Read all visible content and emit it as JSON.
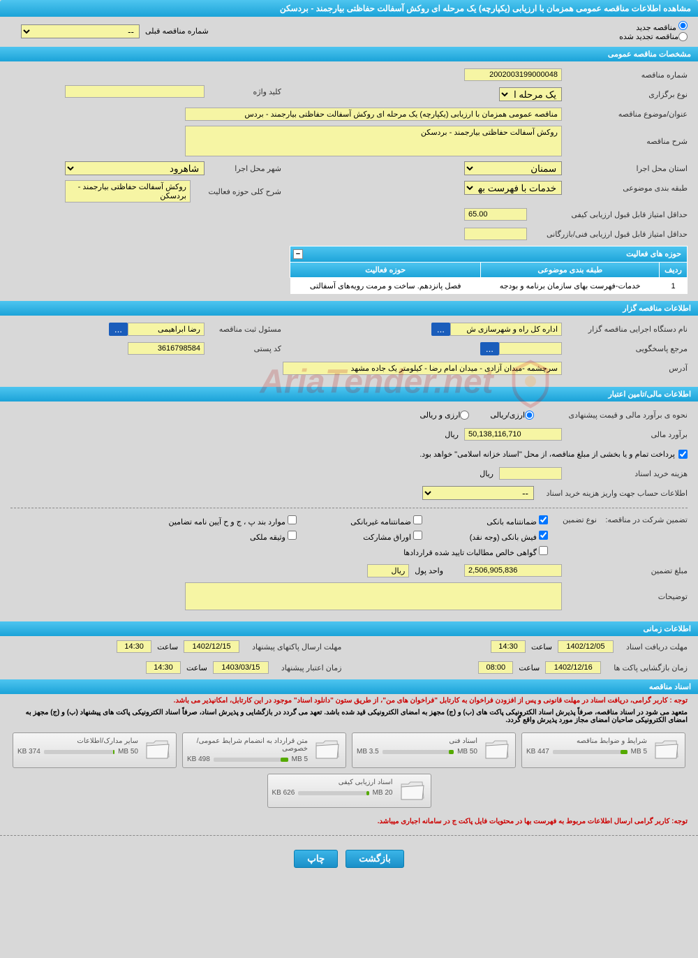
{
  "page_title": "مشاهده اطلاعات مناقصه عمومی همزمان با ارزیابی (یکپارچه) یک مرحله ای روکش آسفالت حفاظتی بیارجمند - بردسکن",
  "tender_status": {
    "new_label": "مناقصه جدید",
    "renewed_label": "مناقصه تجدید شده",
    "prev_label": "شماره مناقصه قبلی",
    "prev_value": "--"
  },
  "sections": {
    "general": "مشخصات مناقصه عمومی",
    "organizer": "اطلاعات مناقصه گزار",
    "financial": "اطلاعات مالی/تامین اعتبار",
    "timing": "اطلاعات زمانی",
    "documents": "اسناد مناقصه"
  },
  "general": {
    "tender_no_label": "شماره مناقصه",
    "tender_no": "2002003199000048",
    "holding_type_label": "نوع برگزاری",
    "holding_type": "یک مرحله ای",
    "keyword_label": "کلید واژه",
    "keyword": "",
    "title_label": "عنوان/موضوع مناقصه",
    "title": "مناقصه عمومی همزمان با ارزیابی (یکپارچه) یک مرحله ای  روکش آسفالت حفاظتی بیارجمند - بردس",
    "desc_label": "شرح مناقصه",
    "desc": "روکش آسفالت حفاظتی بیارجمند - بردسکن",
    "province_label": "استان محل اجرا",
    "province": "سمنان",
    "city_label": "شهر محل اجرا",
    "city": "شاهرود",
    "class_label": "طبقه بندی موضوعی",
    "class": "خدمات با فهرست بها",
    "scope_label": "شرح کلی حوزه فعالیت",
    "scope": "روکش آسفالت حفاظتی بیارجمند - بردسکن",
    "min_score_label": "حداقل امتیاز قابل قبول ارزیابی کیفی",
    "min_score": "65.00",
    "min_tech_label": "حداقل امتیاز قابل قبول ارزیابی فنی/بازرگانی",
    "min_tech": ""
  },
  "activity": {
    "header": "حوزه های فعالیت",
    "col_idx": "ردیف",
    "col_class": "طبقه بندی موضوعی",
    "col_scope": "حوزه فعالیت",
    "row_idx": "1",
    "row_class": "خدمات-فهرست بهای سازمان برنامه و بودجه",
    "row_scope": "فصل پانزدهم. ساخت و مرمت رویه‌های آسفالتی"
  },
  "organizer": {
    "exec_label": "نام دستگاه اجرایی مناقصه گزار",
    "exec": "اداره کل راه و شهرسازی ش",
    "reg_label": "مسئول ثبت مناقصه",
    "reg": "رضا ابراهیمی",
    "resp_label": "مرجع پاسخگویی",
    "resp": "",
    "postal_label": "کد پستی",
    "postal": "3616798584",
    "addr_label": "آدرس",
    "addr": "سرچشمه -میدان آزادی -  میدان امام رضا -  کیلومتر یک جاده مشهد",
    "more_btn": "..."
  },
  "financial": {
    "method_label": "نحوه ی برآورد مالی و قیمت پیشنهادی",
    "opt_rial": "ارزی/ریالی",
    "opt_foreign": "ارزی و ریالی",
    "estimate_label": "برآورد مالی",
    "estimate": "50,138,116,710",
    "currency": "ریال",
    "treasury_note": "پرداخت تمام و یا بخشی از مبلغ مناقصه، از محل \"اسناد خزانه اسلامی\" خواهد بود.",
    "purchase_label": "هزینه خرید اسناد",
    "purchase": "",
    "account_label": "اطلاعات حساب جهت واریز هزینه خرید اسناد",
    "account": "--",
    "guarantee_label": "تضمین شرکت در مناقصه:",
    "type_label": "نوع تضمین",
    "chk_bank": "ضمانتنامه بانکی",
    "chk_nonbank": "ضمانتنامه غیربانکی",
    "chk_clauses": "موارد بند پ ، ج و ح آیین نامه تضامین",
    "chk_cash": "فیش بانکی (وجه نقد)",
    "chk_bonds": "اوراق مشارکت",
    "chk_property": "وثیقه ملکی",
    "chk_claims": "گواهی خالص مطالبات تایید شده قراردادها",
    "amount_label": "مبلغ تضمین",
    "amount": "2,506,905,836",
    "unit_label": "واحد پول",
    "unit": "ریال",
    "notes_label": "توضیحات",
    "notes": ""
  },
  "timing": {
    "receive_label": "مهلت دریافت اسناد",
    "receive_date": "1402/12/05",
    "receive_time": "14:30",
    "submit_label": "مهلت ارسال پاکتهای پیشنهاد",
    "submit_date": "1402/12/15",
    "submit_time": "14:30",
    "open_label": "زمان بازگشایی پاکت ها",
    "open_date": "1402/12/16",
    "open_time": "08:00",
    "validity_label": "زمان اعتبار پیشنهاد",
    "validity_date": "1403/03/15",
    "validity_time": "14:30",
    "time_label": "ساعت"
  },
  "documents": {
    "notice1": "توجه : کاربر گرامی، دریافت اسناد در مهلت قانونی و پس از افزودن فراخوان به کارتابل \"فراخوان های من\"، از طریق ستون \"دانلود اسناد\" موجود در این کارتابل، امکانپذیر می باشد.",
    "notice2": "متعهد می شود در اسناد مناقصه، صرفاً پذیرش اسناد الکترونیکی پاکت های (ب) و (ج) مجهز به امضای الکترونیکی قید شده باشد. تعهد می گردد در بازگشایی و پذیرش اسناد، صرفاً اسناد الکترونیکی پاکت های پیشنهاد (ب) و (ج) مجهز به امضای الکترونیکی صاحبان امضای مجاز مورد پذیرش واقع گردد.",
    "items": [
      {
        "title": "شرایط و ضوابط مناقصه",
        "used": "447 KB",
        "total": "5 MB",
        "fill": 9
      },
      {
        "title": "اسناد فنی",
        "used": "3.5 MB",
        "total": "50 MB",
        "fill": 7
      },
      {
        "title": "متن قرارداد به انضمام شرایط عمومی/خصوصی",
        "used": "498 KB",
        "total": "5 MB",
        "fill": 10
      },
      {
        "title": "سایر مدارک/اطلاعات",
        "used": "374 KB",
        "total": "50 MB",
        "fill": 2
      },
      {
        "title": "اسناد ارزیابی کیفی",
        "used": "626 KB",
        "total": "20 MB",
        "fill": 4
      }
    ],
    "notice3": "توجه: کاربر گرامی ارسال اطلاعات مربوط به فهرست بها در محتویات فایل پاکت ج در سامانه اجباری میباشد."
  },
  "buttons": {
    "back": "بازگشت",
    "print": "چاپ"
  },
  "watermark": "AriaTender.net"
}
